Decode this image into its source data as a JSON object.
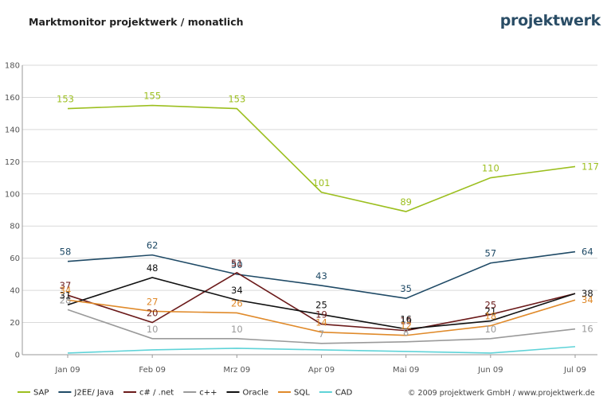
{
  "header": {
    "title": "Marktmonitor projektwerk / monatlich",
    "logo": "projektwerk"
  },
  "footer": {
    "copyright": "© 2009 projektwerk GmbH / www.projektwerk.de"
  },
  "chart_data": {
    "type": "line",
    "title": "Marktmonitor projektwerk / monatlich",
    "xlabel": "",
    "ylabel": "",
    "categories": [
      "Jan 09",
      "Feb 09",
      "Mrz 09",
      "Apr 09",
      "Mai 09",
      "Jun 09",
      "Jul 09"
    ],
    "ylim": [
      0,
      180
    ],
    "yticks": [
      0,
      20,
      40,
      60,
      80,
      100,
      120,
      140,
      160,
      180
    ],
    "grid": true,
    "legend_position": "bottom-left",
    "series": [
      {
        "name": "SAP",
        "color": "#9cbf1f",
        "values": [
          153,
          155,
          153,
          101,
          89,
          110,
          117
        ],
        "labels": [
          "153",
          "155",
          "153",
          "101",
          "89",
          "110",
          "117"
        ]
      },
      {
        "name": "J2EE/ Java",
        "color": "#1f4a66",
        "values": [
          58,
          62,
          50,
          43,
          35,
          57,
          64
        ],
        "labels": [
          "58",
          "62",
          "50",
          "43",
          "35",
          "57",
          "64"
        ]
      },
      {
        "name": "c# / .net",
        "color": "#6b1a1a",
        "values": [
          37,
          20,
          51,
          19,
          15,
          25,
          38
        ],
        "labels": [
          "37",
          "20",
          "51",
          "19",
          "15",
          "25",
          ""
        ]
      },
      {
        "name": "c++",
        "color": "#9a9a9a",
        "values": [
          28,
          10,
          10,
          7,
          8,
          10,
          16
        ],
        "labels": [
          "28",
          "10",
          "10",
          "7",
          "8",
          "10",
          "16"
        ]
      },
      {
        "name": "Oracle",
        "color": "#111111",
        "values": [
          31,
          48,
          34,
          25,
          16,
          21,
          38
        ],
        "labels": [
          "31",
          "48",
          "34",
          "25",
          "16",
          "21",
          "38"
        ]
      },
      {
        "name": "SQL",
        "color": "#e08a2a",
        "values": [
          34,
          27,
          26,
          14,
          12,
          18,
          34
        ],
        "labels": [
          "34",
          "27",
          "26",
          "14",
          "12",
          "18",
          "34"
        ]
      },
      {
        "name": "CAD",
        "color": "#5fd3d8",
        "values": [
          1,
          3,
          4,
          3,
          2,
          1,
          5
        ],
        "labels": [
          "",
          "",
          "",
          "",
          "",
          "",
          ""
        ]
      }
    ]
  }
}
